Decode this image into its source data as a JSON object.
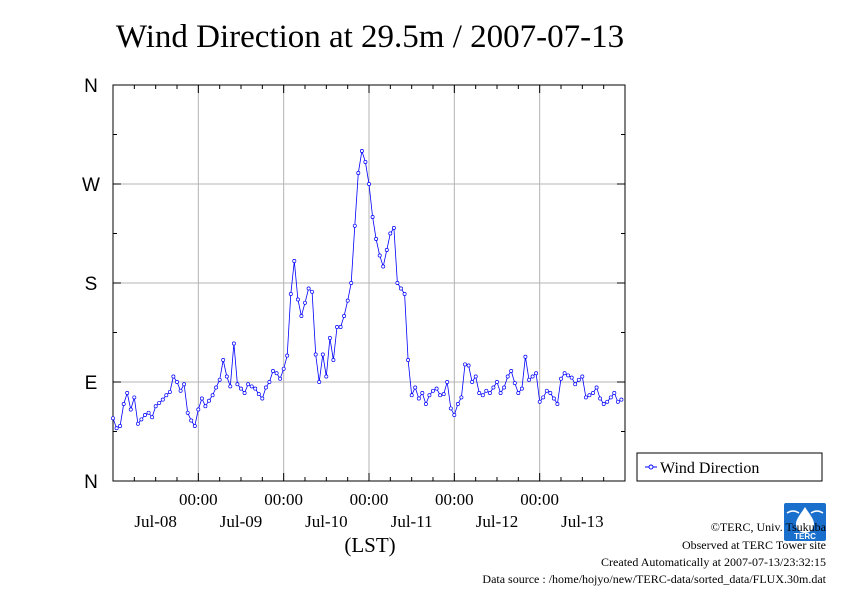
{
  "chart_data": {
    "type": "line",
    "title": "Wind Direction at 29.5m / 2007-07-13",
    "xlabel": "(LST)",
    "ylabel": "",
    "y_tick_labels": [
      "N",
      "E",
      "S",
      "W",
      "N"
    ],
    "y_tick_values": [
      0,
      90,
      180,
      270,
      360
    ],
    "ylim": [
      0,
      360
    ],
    "xlim": [
      0,
      144
    ],
    "x_time_labels": [
      "00:00",
      "00:00",
      "00:00",
      "00:00",
      "00:00"
    ],
    "x_date_labels": [
      "Jul-08",
      "Jul-09",
      "Jul-10",
      "Jul-11",
      "Jul-12",
      "Jul-13"
    ],
    "x_time_positions": [
      24,
      48,
      72,
      96,
      120
    ],
    "x_date_positions": [
      12,
      36,
      60,
      84,
      108,
      132
    ],
    "grid": true,
    "legend_placement": "right-bottom",
    "line_color": "#0000ff",
    "series": [
      {
        "name": "Wind Direction",
        "x": [
          0,
          1,
          2,
          3,
          4,
          5,
          6,
          7,
          8,
          9,
          10,
          11,
          12,
          13,
          14,
          15,
          16,
          17,
          18,
          19,
          20,
          21,
          22,
          23,
          24,
          25,
          26,
          27,
          28,
          29,
          30,
          31,
          32,
          33,
          34,
          35,
          36,
          37,
          38,
          39,
          40,
          41,
          42,
          43,
          44,
          45,
          46,
          47,
          48,
          49,
          50,
          51,
          52,
          53,
          54,
          55,
          56,
          57,
          58,
          59,
          60,
          61,
          62,
          63,
          64,
          65,
          66,
          67,
          68,
          69,
          70,
          71,
          72,
          73,
          74,
          75,
          76,
          77,
          78,
          79,
          80,
          81,
          82,
          83,
          84,
          85,
          86,
          87,
          88,
          89,
          90,
          91,
          92,
          93,
          94,
          95,
          96,
          97,
          98,
          99,
          100,
          101,
          102,
          103,
          104,
          105,
          106,
          107,
          108,
          109,
          110,
          111,
          112,
          113,
          114,
          115,
          116,
          117,
          118,
          119,
          120,
          121,
          122,
          123,
          124,
          125,
          126,
          127,
          128,
          129,
          130,
          131,
          132,
          133,
          134,
          135,
          136,
          137,
          138,
          139,
          140,
          141,
          142,
          143
        ],
        "y": [
          57,
          48,
          50,
          70,
          80,
          65,
          76,
          52,
          56,
          60,
          62,
          58,
          68,
          71,
          74,
          78,
          81,
          95,
          90,
          82,
          88,
          62,
          55,
          50,
          65,
          75,
          68,
          73,
          78,
          85,
          92,
          110,
          95,
          86,
          125,
          88,
          84,
          80,
          88,
          86,
          84,
          79,
          75,
          85,
          90,
          100,
          98,
          93,
          102,
          114,
          170,
          200,
          165,
          150,
          162,
          175,
          172,
          115,
          90,
          115,
          95,
          130,
          110,
          140,
          140,
          150,
          164,
          180,
          232,
          280,
          300,
          290,
          270,
          240,
          220,
          205,
          195,
          210,
          225,
          230,
          180,
          175,
          170,
          110,
          78,
          85,
          75,
          80,
          70,
          78,
          82,
          84,
          78,
          79,
          90,
          66,
          60,
          70,
          76,
          106,
          105,
          90,
          95,
          80,
          78,
          82,
          80,
          85,
          90,
          80,
          85,
          95,
          100,
          89,
          80,
          84,
          113,
          92,
          95,
          98,
          72,
          76,
          82,
          80,
          75,
          70,
          93,
          98,
          96,
          94,
          88,
          92,
          95,
          76,
          78,
          80,
          85,
          75,
          70,
          72,
          76,
          80,
          72,
          74
        ]
      }
    ]
  },
  "credits": {
    "copyright": "©TERC, Univ. Tsukuba",
    "observed": "Observed at TERC Tower site",
    "created": "Created Automatically at 2007-07-13/23:32:15",
    "source": "Data source : /home/hojyo/new/TERC-data/sorted_data/FLUX.30m.dat"
  },
  "logo": {
    "text": "TERC",
    "color": "#1a6fcc"
  }
}
